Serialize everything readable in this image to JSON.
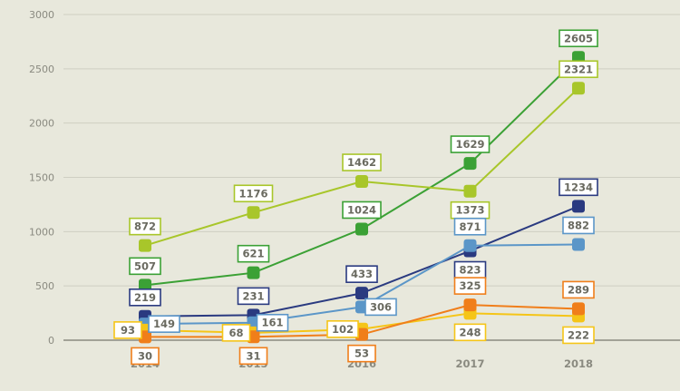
{
  "chart_data": {
    "type": "line",
    "title": "",
    "xlabel": "",
    "ylabel": "",
    "categories": [
      "2014",
      "2015",
      "2016",
      "2017",
      "2018"
    ],
    "ylim": [
      0,
      3000
    ],
    "yticks": [
      "0",
      "500",
      "1000",
      "1500",
      "2000",
      "2500",
      "3000"
    ],
    "grid": true,
    "legend": "none",
    "series": [
      {
        "color": "#3ba135",
        "values": [
          507,
          621,
          1024,
          1629,
          2605
        ]
      },
      {
        "color": "#a8c62a",
        "values": [
          872,
          1176,
          1462,
          1373,
          2321
        ]
      },
      {
        "color": "#2a3a80",
        "values": [
          219,
          231,
          433,
          823,
          1234
        ]
      },
      {
        "color": "#5b96c8",
        "values": [
          149,
          161,
          306,
          871,
          882
        ]
      },
      {
        "color": "#f5c518",
        "values": [
          93,
          68,
          102,
          248,
          222
        ]
      },
      {
        "color": "#f07e1a",
        "values": [
          30,
          31,
          53,
          325,
          289
        ]
      }
    ]
  }
}
